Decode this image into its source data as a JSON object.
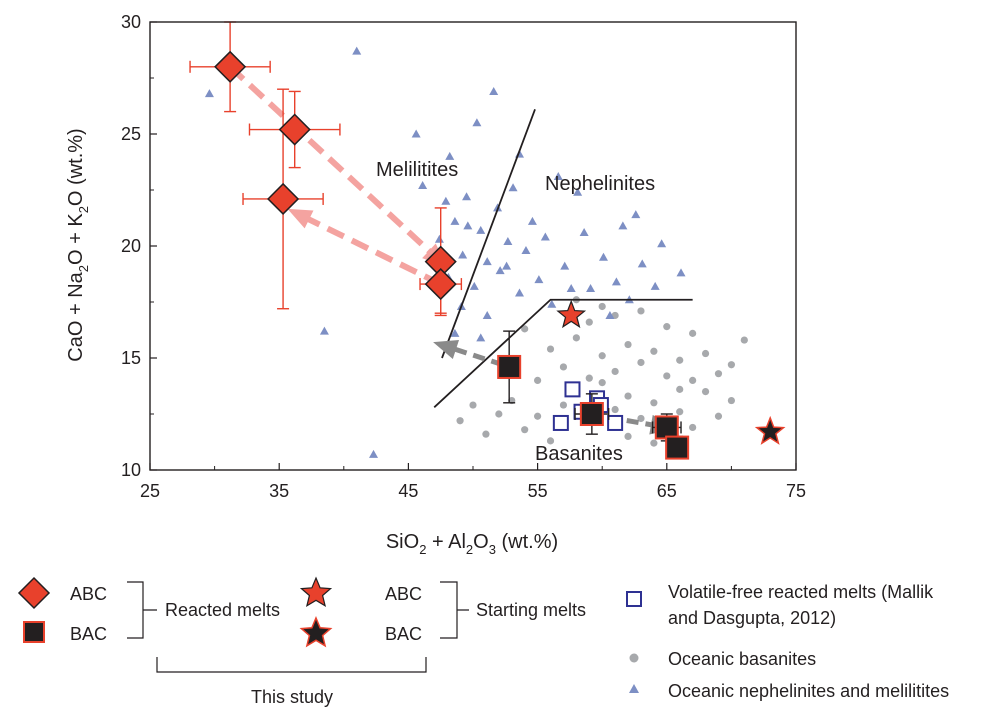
{
  "chart_data": {
    "type": "scatter",
    "xlabel": {
      "main": "SiO",
      "sub1": "2",
      "mid": " + Al",
      "sub2": "2",
      "mid2": "O",
      "sub3": "3",
      "tail": " (wt.%)"
    },
    "ylabel": {
      "main": "CaO + Na",
      "sub1": "2",
      "mid": "O + K",
      "sub2": "2",
      "tail": "O (wt.%)"
    },
    "xlim": [
      25,
      75
    ],
    "ylim": [
      10,
      30
    ],
    "xticks": [
      "25",
      "35",
      "45",
      "55",
      "65",
      "75"
    ],
    "yticks": [
      "10",
      "15",
      "20",
      "25",
      "30"
    ],
    "field_labels": [
      "Melilitites",
      "Nephelinites",
      "Basanites"
    ],
    "colors": {
      "reacted_abc": "#e8412c",
      "reacted_bac_fill": "#231f20",
      "reacted_bac_edge": "#e8412c",
      "basanite": "#a7a9ac",
      "nephelinite": "#7d8fc4",
      "melilitite": "#6f8fc9",
      "volatile_free": "#2e3192",
      "arrow_red": "#f4a3a0",
      "arrow_gray": "#8a8a8a",
      "error_red": "#e8412c",
      "error_black": "#231f20"
    },
    "series": [
      {
        "name": "ABC",
        "group": "Reacted melts",
        "marker": "diamond",
        "points": [
          {
            "x": 31.2,
            "y": 28.0,
            "xerr": 3.1,
            "yerr": 2.0
          },
          {
            "x": 36.2,
            "y": 25.2,
            "xerr": 3.5,
            "yerr": 1.7
          },
          {
            "x": 35.3,
            "y": 22.1,
            "xerr": 3.1,
            "yerr": 4.9
          },
          {
            "x": 47.5,
            "y": 19.3,
            "xerr": 0,
            "yerr": 2.4
          },
          {
            "x": 47.5,
            "y": 18.3,
            "xerr": 1.6,
            "yerr": 1.3
          }
        ]
      },
      {
        "name": "BAC",
        "group": "Reacted melts",
        "marker": "square",
        "points": [
          {
            "x": 52.8,
            "y": 14.6,
            "xerr": 0.8,
            "yerr": 1.6
          },
          {
            "x": 59.2,
            "y": 12.5,
            "xerr": 1.3,
            "yerr": 0.9
          },
          {
            "x": 65.0,
            "y": 11.9,
            "xerr": 1.1,
            "yerr": 0.6
          },
          {
            "x": 65.8,
            "y": 11.0,
            "xerr": 0.7,
            "yerr": 0.5
          }
        ]
      },
      {
        "name": "ABC",
        "group": "Starting melts",
        "marker": "star-red",
        "points": [
          {
            "x": 57.6,
            "y": 16.9
          }
        ]
      },
      {
        "name": "BAC",
        "group": "Starting melts",
        "marker": "star-dark",
        "points": [
          {
            "x": 73.0,
            "y": 11.7
          }
        ]
      },
      {
        "name": "Volatile-free reacted melts (Mallik and Dasgupta, 2012)",
        "marker": "open-square",
        "points": [
          {
            "x": 57.7,
            "y": 13.6
          },
          {
            "x": 59.6,
            "y": 13.2
          },
          {
            "x": 58.4,
            "y": 12.6
          },
          {
            "x": 56.8,
            "y": 12.1
          },
          {
            "x": 61.0,
            "y": 12.1
          },
          {
            "x": 59.9,
            "y": 12.9
          }
        ]
      },
      {
        "name": "Oceanic basanites",
        "marker": "gray-circle",
        "points": [
          {
            "x": 56,
            "y": 15.4
          },
          {
            "x": 57,
            "y": 14.6
          },
          {
            "x": 58,
            "y": 15.9
          },
          {
            "x": 59,
            "y": 14.1
          },
          {
            "x": 60,
            "y": 15.1
          },
          {
            "x": 61,
            "y": 14.4
          },
          {
            "x": 62,
            "y": 15.6
          },
          {
            "x": 63,
            "y": 14.8
          },
          {
            "x": 64,
            "y": 15.3
          },
          {
            "x": 65,
            "y": 14.2
          },
          {
            "x": 66,
            "y": 14.9
          },
          {
            "x": 67,
            "y": 14.0
          },
          {
            "x": 68,
            "y": 13.5
          },
          {
            "x": 69,
            "y": 14.3
          },
          {
            "x": 70,
            "y": 13.1
          },
          {
            "x": 71,
            "y": 15.8
          },
          {
            "x": 58,
            "y": 13.6
          },
          {
            "x": 60,
            "y": 13.9
          },
          {
            "x": 62,
            "y": 13.3
          },
          {
            "x": 64,
            "y": 13.0
          },
          {
            "x": 66,
            "y": 12.6
          },
          {
            "x": 57,
            "y": 12.9
          },
          {
            "x": 61,
            "y": 12.7
          },
          {
            "x": 63,
            "y": 12.3
          },
          {
            "x": 55,
            "y": 12.4
          },
          {
            "x": 54,
            "y": 11.8
          },
          {
            "x": 56,
            "y": 11.3
          },
          {
            "x": 53,
            "y": 13.1
          },
          {
            "x": 52,
            "y": 12.5
          },
          {
            "x": 51,
            "y": 11.6
          },
          {
            "x": 50,
            "y": 12.9
          },
          {
            "x": 49,
            "y": 12.2
          },
          {
            "x": 59,
            "y": 16.6
          },
          {
            "x": 61,
            "y": 16.9
          },
          {
            "x": 63,
            "y": 17.1
          },
          {
            "x": 65,
            "y": 16.4
          },
          {
            "x": 67,
            "y": 16.1
          },
          {
            "x": 62,
            "y": 11.5
          },
          {
            "x": 64,
            "y": 11.2
          },
          {
            "x": 67,
            "y": 11.9
          },
          {
            "x": 69,
            "y": 12.4
          },
          {
            "x": 70,
            "y": 14.7
          },
          {
            "x": 58,
            "y": 17.6
          },
          {
            "x": 60,
            "y": 17.3
          },
          {
            "x": 54,
            "y": 16.3
          },
          {
            "x": 55,
            "y": 14.0
          },
          {
            "x": 66,
            "y": 13.6
          },
          {
            "x": 68,
            "y": 15.2
          }
        ]
      },
      {
        "name": "Oceanic nephelinites and melilitites",
        "marker": "blue-triangle",
        "points": [
          {
            "x": 29.6,
            "y": 26.8
          },
          {
            "x": 41.0,
            "y": 28.7
          },
          {
            "x": 38.5,
            "y": 16.2
          },
          {
            "x": 42.3,
            "y": 10.7
          },
          {
            "x": 45.6,
            "y": 25.0
          },
          {
            "x": 51.6,
            "y": 26.9
          },
          {
            "x": 50.3,
            "y": 25.5
          },
          {
            "x": 48.2,
            "y": 24.0
          },
          {
            "x": 53.6,
            "y": 24.1
          },
          {
            "x": 46.1,
            "y": 22.7
          },
          {
            "x": 49.5,
            "y": 22.2
          },
          {
            "x": 48.6,
            "y": 21.1
          },
          {
            "x": 50.6,
            "y": 20.7
          },
          {
            "x": 51.9,
            "y": 21.7
          },
          {
            "x": 47.4,
            "y": 20.3
          },
          {
            "x": 49.2,
            "y": 19.6
          },
          {
            "x": 51.1,
            "y": 19.3
          },
          {
            "x": 52.7,
            "y": 20.2
          },
          {
            "x": 54.1,
            "y": 19.8
          },
          {
            "x": 55.6,
            "y": 20.4
          },
          {
            "x": 57.1,
            "y": 19.1
          },
          {
            "x": 58.6,
            "y": 20.6
          },
          {
            "x": 60.1,
            "y": 19.5
          },
          {
            "x": 61.6,
            "y": 20.9
          },
          {
            "x": 63.1,
            "y": 19.2
          },
          {
            "x": 64.6,
            "y": 20.1
          },
          {
            "x": 62.6,
            "y": 21.4
          },
          {
            "x": 58.1,
            "y": 22.4
          },
          {
            "x": 56.6,
            "y": 23.1
          },
          {
            "x": 48.1,
            "y": 18.6
          },
          {
            "x": 50.1,
            "y": 18.2
          },
          {
            "x": 52.1,
            "y": 18.9
          },
          {
            "x": 53.6,
            "y": 17.9
          },
          {
            "x": 55.1,
            "y": 18.5
          },
          {
            "x": 49.1,
            "y": 17.3
          },
          {
            "x": 51.1,
            "y": 16.9
          },
          {
            "x": 48.6,
            "y": 16.1
          },
          {
            "x": 50.6,
            "y": 15.9
          },
          {
            "x": 56.1,
            "y": 17.4
          },
          {
            "x": 59.1,
            "y": 18.1
          },
          {
            "x": 61.1,
            "y": 18.4
          },
          {
            "x": 62.1,
            "y": 17.6
          },
          {
            "x": 64.1,
            "y": 18.2
          },
          {
            "x": 66.1,
            "y": 18.8
          },
          {
            "x": 54.6,
            "y": 21.1
          },
          {
            "x": 53.1,
            "y": 22.6
          },
          {
            "x": 47.9,
            "y": 22.0
          },
          {
            "x": 46.6,
            "y": 19.6
          },
          {
            "x": 49.6,
            "y": 20.9
          },
          {
            "x": 52.6,
            "y": 19.1
          },
          {
            "x": 57.6,
            "y": 18.1
          },
          {
            "x": 60.6,
            "y": 16.9
          }
        ]
      }
    ],
    "arrows": [
      {
        "kind": "dashed-red",
        "from": [
          31.2,
          28.0
        ],
        "to": [
          47.5,
          19.3
        ]
      },
      {
        "kind": "dashed-red",
        "from": [
          47.5,
          18.3
        ],
        "to": [
          36.2,
          21.5
        ]
      },
      {
        "kind": "dashed-gray",
        "from": [
          52.3,
          14.7
        ],
        "to": [
          47.5,
          15.6
        ]
      },
      {
        "kind": "dashed-gray",
        "from": [
          59.0,
          12.5
        ],
        "to": [
          65.0,
          11.9
        ]
      }
    ],
    "boundaries": [
      {
        "points": [
          [
            47.6,
            15.0
          ],
          [
            54.8,
            26.1
          ]
        ]
      },
      {
        "points": [
          [
            47.0,
            12.8
          ],
          [
            56.0,
            17.6
          ],
          [
            67.0,
            17.6
          ]
        ]
      }
    ]
  },
  "legend": {
    "abc_label": "ABC",
    "bac_label": "BAC",
    "reacted_melts": "Reacted melts",
    "star_abc_label": "ABC",
    "star_bac_label": "BAC",
    "starting_melts": "Starting melts",
    "this_study": "This study",
    "volatile_free_line1": "Volatile-free reacted melts (Mallik",
    "volatile_free_line2": "and Dasgupta, 2012)",
    "oceanic_basanites": "Oceanic basanites",
    "oceanic_nephelinites": "Oceanic nephelinites and melilitites"
  }
}
